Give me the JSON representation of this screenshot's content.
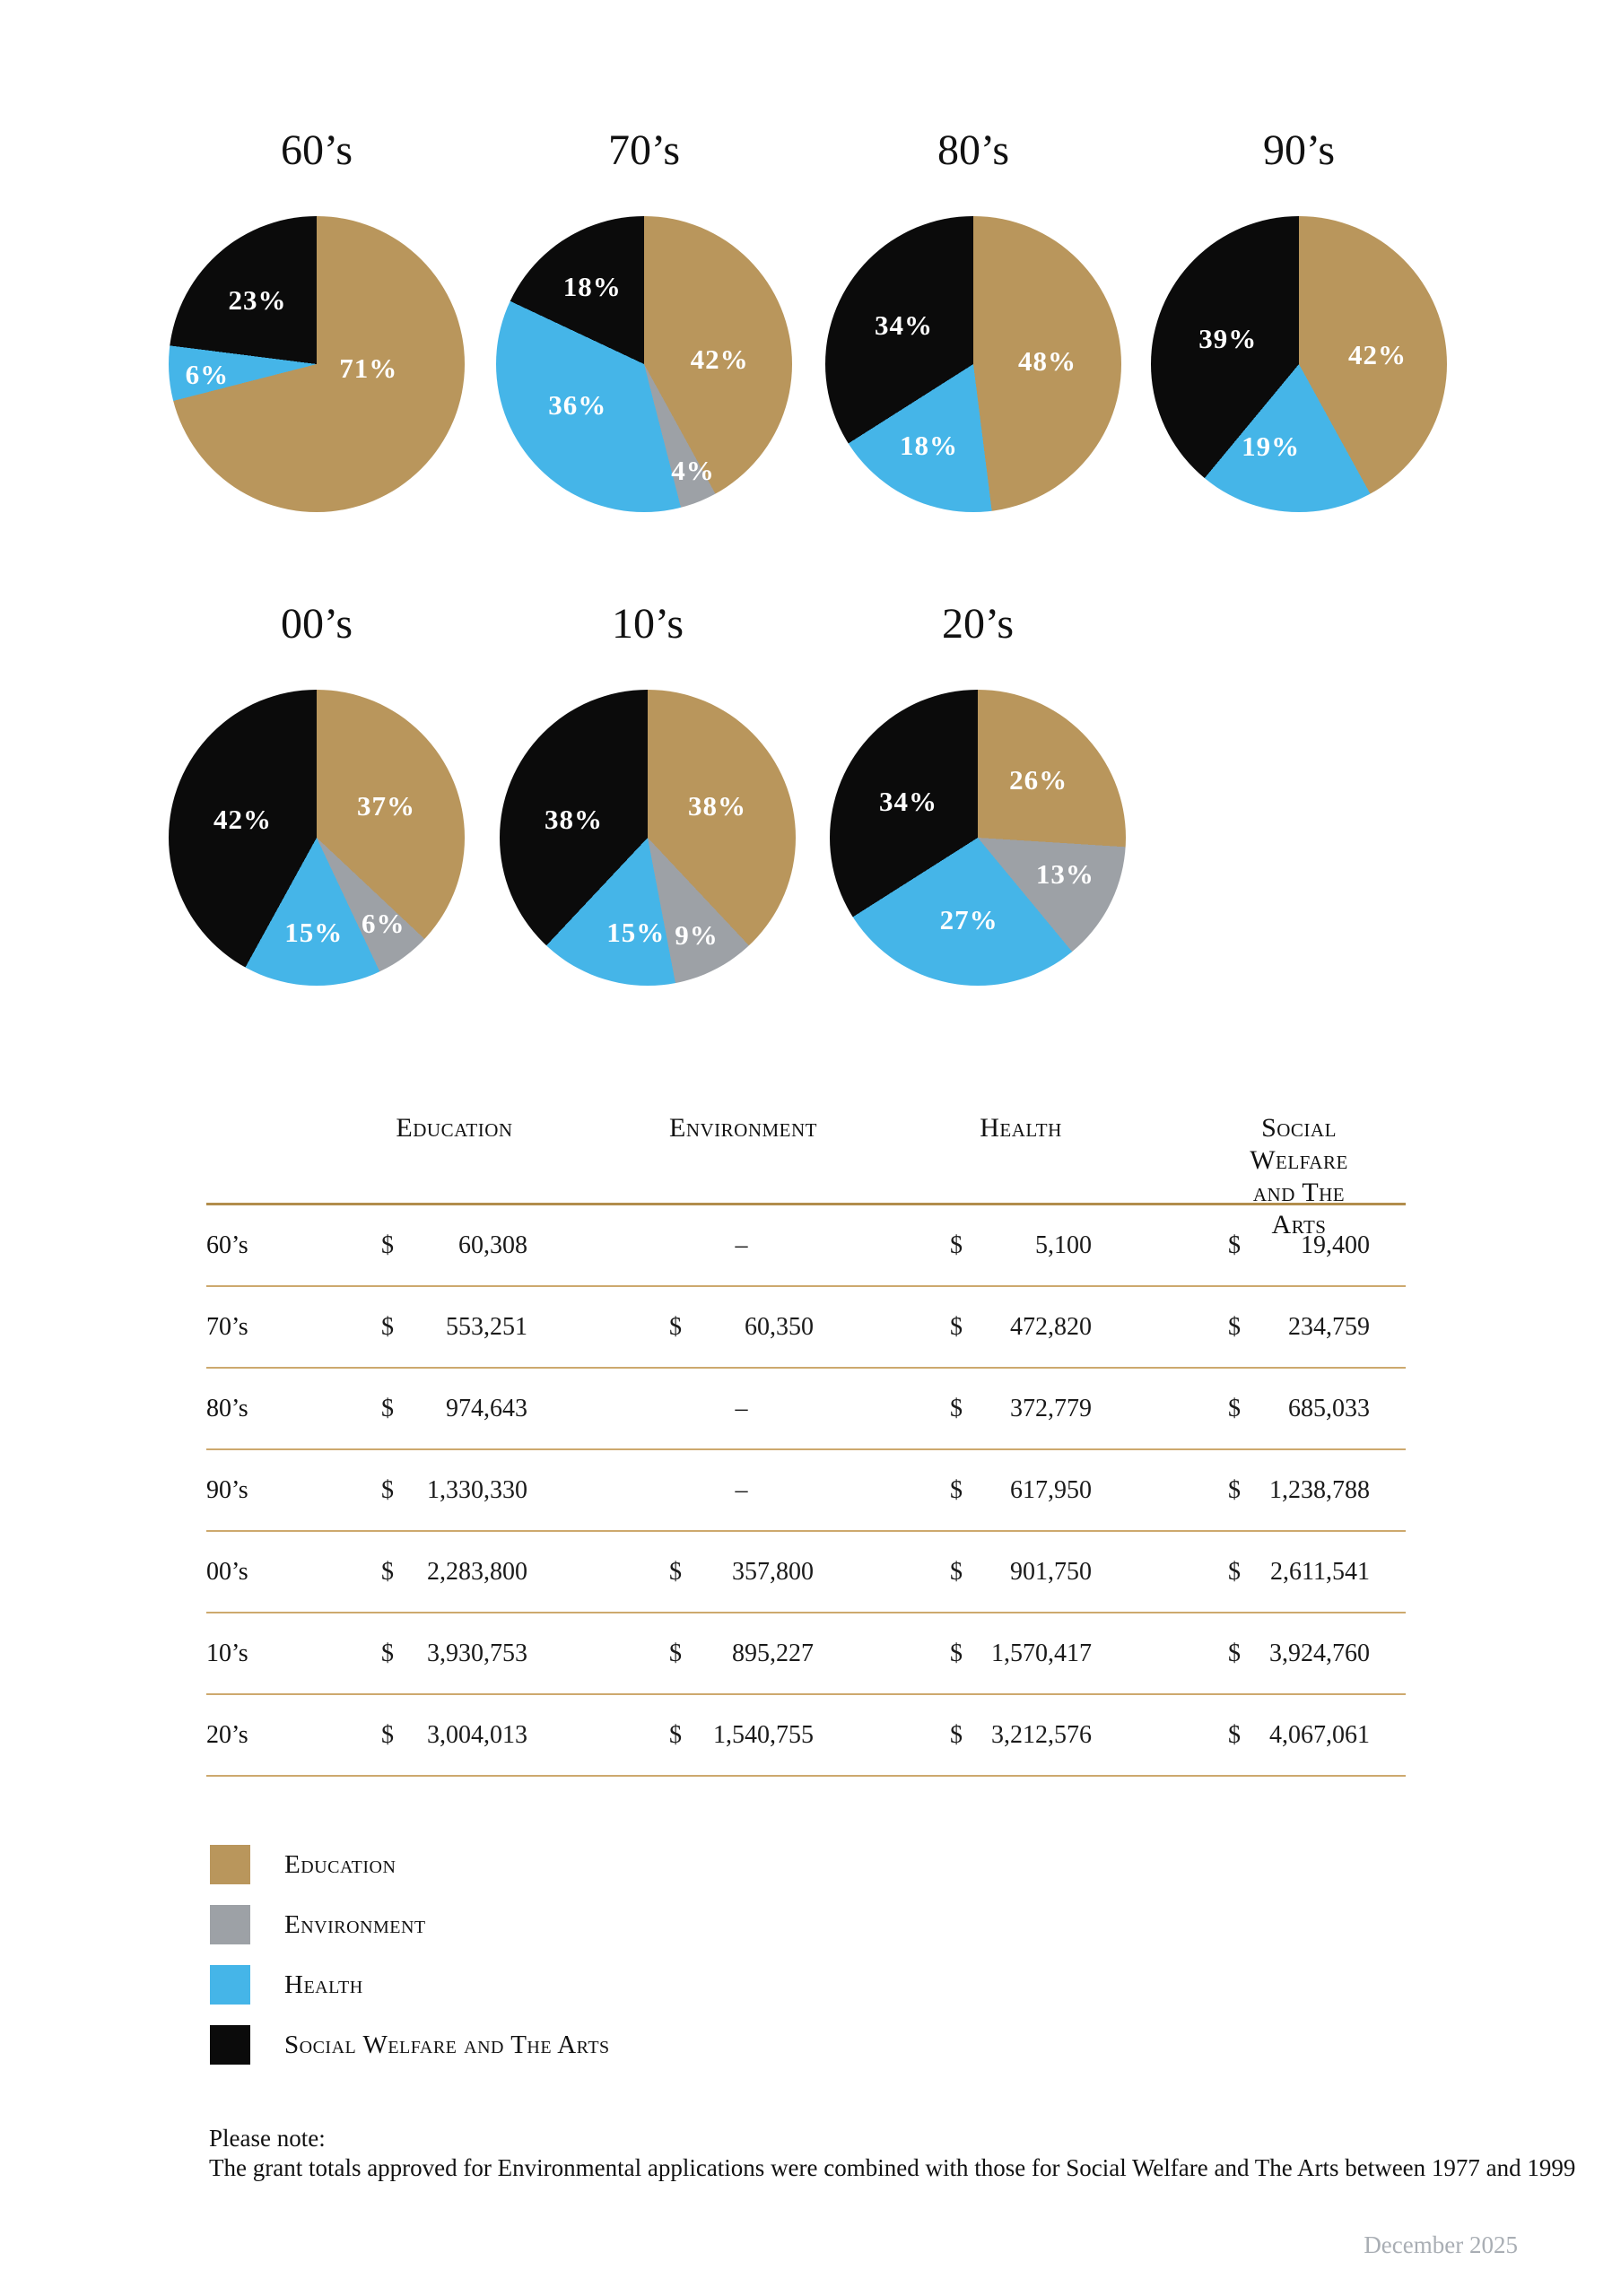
{
  "colors": {
    "education": "#b9965c",
    "environment": "#9da1a6",
    "health": "#45b5e8",
    "social_welfare": "#0b0b0b",
    "rule": "#cda96e",
    "rule_heavy": "#b28d4c",
    "footer_text": "#a9aeb4"
  },
  "chart_data": [
    {
      "type": "pie",
      "title": "60’s",
      "slices": [
        {
          "name": "Education",
          "key": "education",
          "pct": 71,
          "label": "71%",
          "dx": 0.35,
          "dy": 0.03
        },
        {
          "name": "Health",
          "key": "health",
          "pct": 6,
          "label": "6%",
          "dx": -0.74,
          "dy": 0.07
        },
        {
          "name": "Social Welfare and The Arts",
          "key": "social_welfare",
          "pct": 23,
          "label": "23%",
          "dx": -0.4,
          "dy": -0.43
        }
      ]
    },
    {
      "type": "pie",
      "title": "70’s",
      "slices": [
        {
          "name": "Education",
          "key": "education",
          "pct": 42,
          "label": "42%",
          "dx": 0.51,
          "dy": -0.03
        },
        {
          "name": "Environment",
          "key": "environment",
          "pct": 4,
          "label": "4%",
          "dx": 0.33,
          "dy": 0.72
        },
        {
          "name": "Health",
          "key": "health",
          "pct": 36,
          "label": "36%",
          "dx": -0.45,
          "dy": 0.28
        },
        {
          "name": "Social Welfare and The Arts",
          "key": "social_welfare",
          "pct": 18,
          "label": "18%",
          "dx": -0.35,
          "dy": -0.52
        }
      ]
    },
    {
      "type": "pie",
      "title": "80’s",
      "slices": [
        {
          "name": "Education",
          "key": "education",
          "pct": 48,
          "label": "48%",
          "dx": 0.5,
          "dy": -0.02
        },
        {
          "name": "Health",
          "key": "health",
          "pct": 18,
          "label": "18%",
          "dx": -0.3,
          "dy": 0.55
        },
        {
          "name": "Social Welfare and The Arts",
          "key": "social_welfare",
          "pct": 34,
          "label": "34%",
          "dx": -0.47,
          "dy": -0.26
        }
      ]
    },
    {
      "type": "pie",
      "title": "90’s",
      "slices": [
        {
          "name": "Education",
          "key": "education",
          "pct": 42,
          "label": "42%",
          "dx": 0.53,
          "dy": -0.06
        },
        {
          "name": "Health",
          "key": "health",
          "pct": 19,
          "label": "19%",
          "dx": -0.19,
          "dy": 0.56
        },
        {
          "name": "Social Welfare and The Arts",
          "key": "social_welfare",
          "pct": 39,
          "label": "39%",
          "dx": -0.48,
          "dy": -0.17
        }
      ]
    },
    {
      "type": "pie",
      "title": "00’s",
      "slices": [
        {
          "name": "Education",
          "key": "education",
          "pct": 37,
          "label": "37%",
          "dx": 0.47,
          "dy": -0.21
        },
        {
          "name": "Environment",
          "key": "environment",
          "pct": 6,
          "label": "6%",
          "dx": 0.45,
          "dy": 0.58
        },
        {
          "name": "Health",
          "key": "health",
          "pct": 15,
          "label": "15%",
          "dx": -0.02,
          "dy": 0.64
        },
        {
          "name": "Social Welfare and The Arts",
          "key": "social_welfare",
          "pct": 42,
          "label": "42%",
          "dx": -0.5,
          "dy": -0.12
        }
      ]
    },
    {
      "type": "pie",
      "title": "10’s",
      "slices": [
        {
          "name": "Education",
          "key": "education",
          "pct": 38,
          "label": "38%",
          "dx": 0.47,
          "dy": -0.21
        },
        {
          "name": "Environment",
          "key": "environment",
          "pct": 9,
          "label": "9%",
          "dx": 0.33,
          "dy": 0.66
        },
        {
          "name": "Health",
          "key": "health",
          "pct": 15,
          "label": "15%",
          "dx": -0.08,
          "dy": 0.64
        },
        {
          "name": "Social Welfare and The Arts",
          "key": "social_welfare",
          "pct": 38,
          "label": "38%",
          "dx": -0.5,
          "dy": -0.12
        }
      ]
    },
    {
      "type": "pie",
      "title": "20’s",
      "slices": [
        {
          "name": "Education",
          "key": "education",
          "pct": 26,
          "label": "26%",
          "dx": 0.41,
          "dy": -0.39
        },
        {
          "name": "Environment",
          "key": "environment",
          "pct": 13,
          "label": "13%",
          "dx": 0.59,
          "dy": 0.25
        },
        {
          "name": "Health",
          "key": "health",
          "pct": 27,
          "label": "27%",
          "dx": -0.06,
          "dy": 0.56
        },
        {
          "name": "Social Welfare and The Arts",
          "key": "social_welfare",
          "pct": 34,
          "label": "34%",
          "dx": -0.47,
          "dy": -0.24
        }
      ]
    }
  ],
  "table": {
    "currency": "$",
    "empty": "–",
    "headers": [
      {
        "line1": "Education",
        "line2": ""
      },
      {
        "line1": "Environment",
        "line2": ""
      },
      {
        "line1": "Health",
        "line2": ""
      },
      {
        "line1": "Social Welfare",
        "line2": "and The Arts"
      }
    ],
    "rows": [
      {
        "decade": "60’s",
        "values": [
          "60,308",
          null,
          "5,100",
          "19,400"
        ]
      },
      {
        "decade": "70’s",
        "values": [
          "553,251",
          "60,350",
          "472,820",
          "234,759"
        ]
      },
      {
        "decade": "80’s",
        "values": [
          "974,643",
          null,
          "372,779",
          "685,033"
        ]
      },
      {
        "decade": "90’s",
        "values": [
          "1,330,330",
          null,
          "617,950",
          "1,238,788"
        ]
      },
      {
        "decade": "00’s",
        "values": [
          "2,283,800",
          "357,800",
          "901,750",
          "2,611,541"
        ]
      },
      {
        "decade": "10’s",
        "values": [
          "3,930,753",
          "895,227",
          "1,570,417",
          "3,924,760"
        ]
      },
      {
        "decade": "20’s",
        "values": [
          "3,004,013",
          "1,540,755",
          "3,212,576",
          "4,067,061"
        ]
      }
    ]
  },
  "legend": {
    "items": [
      {
        "label": "Education",
        "key": "education"
      },
      {
        "label": "Environment",
        "key": "environment"
      },
      {
        "label": "Health",
        "key": "health"
      },
      {
        "label": "Social Welfare and The Arts",
        "key": "social_welfare"
      }
    ]
  },
  "note": {
    "title": "Please note:",
    "body": "The grant totals approved for Environmental applications were combined with those for Social Welfare and The Arts between 1977 and 1999"
  },
  "footer": {
    "date": "December 2025"
  }
}
